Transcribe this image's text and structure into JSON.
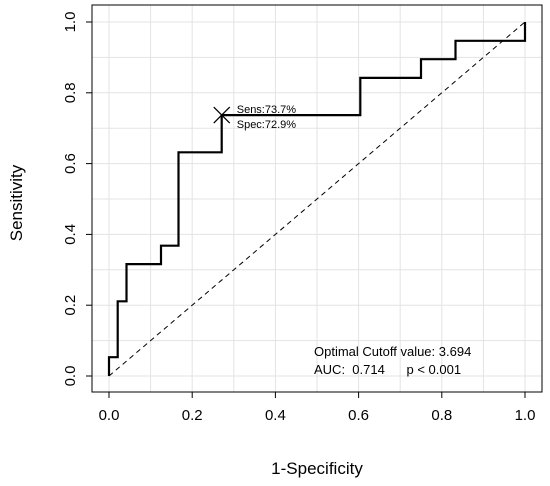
{
  "chart_data": {
    "type": "line",
    "title": "",
    "xlabel": "1-Specificity",
    "ylabel": "Sensitivity",
    "xlim": [
      0,
      1
    ],
    "ylim": [
      0,
      1
    ],
    "x_ticks": [
      "0.0",
      "0.2",
      "0.4",
      "0.6",
      "0.8",
      "1.0"
    ],
    "y_ticks": [
      "0.0",
      "0.2",
      "0.4",
      "0.6",
      "0.8",
      "1.0"
    ],
    "grid": true,
    "series": [
      {
        "style": "step",
        "color": "#000000",
        "x": [
          0,
          0,
          0.021,
          0.021,
          0.042,
          0.042,
          0.125,
          0.125,
          0.167,
          0.167,
          0.271,
          0.271,
          0.604,
          0.604,
          0.75,
          0.75,
          0.833,
          0.833,
          1.0,
          1.0
        ],
        "y": [
          0,
          0.053,
          0.053,
          0.211,
          0.211,
          0.316,
          0.316,
          0.368,
          0.368,
          0.632,
          0.632,
          0.737,
          0.737,
          0.842,
          0.842,
          0.895,
          0.895,
          0.947,
          0.947,
          1.0
        ]
      }
    ],
    "reference_line": {
      "style": "dashed",
      "x": [
        0,
        1
      ],
      "y": [
        0,
        1
      ]
    },
    "optimal_point": {
      "x": 0.271,
      "y": 0.737,
      "marker": "x",
      "labels": [
        "Sens:73.7%",
        "Spec:72.9%"
      ]
    },
    "annotations": [
      "Optimal Cutoff value:  3.694",
      "AUC:  0.714      p < 0.001"
    ]
  }
}
